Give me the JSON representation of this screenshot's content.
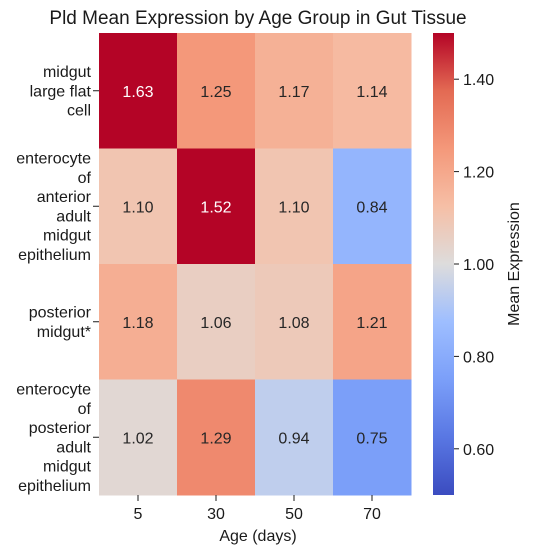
{
  "chart_data": {
    "type": "heatmap",
    "title": "Pld Mean Expression by Age Group in Gut Tissue",
    "xlabel": "Age (days)",
    "ylabel": "",
    "x_categories": [
      "5",
      "30",
      "50",
      "70"
    ],
    "y_categories": [
      "midgut large flat cell",
      "enterocyte of anterior adult midgut epithelium",
      "posterior midgut*",
      "enterocyte of posterior adult midgut epithelium"
    ],
    "values": [
      [
        1.63,
        1.25,
        1.17,
        1.14
      ],
      [
        1.1,
        1.52,
        1.1,
        0.84
      ],
      [
        1.18,
        1.06,
        1.08,
        1.21
      ],
      [
        1.02,
        1.29,
        0.94,
        0.75
      ]
    ],
    "value_labels": [
      [
        "1.63",
        "1.25",
        "1.17",
        "1.14"
      ],
      [
        "1.10",
        "1.52",
        "1.10",
        "0.84"
      ],
      [
        "1.18",
        "1.06",
        "1.08",
        "1.21"
      ],
      [
        "1.02",
        "1.29",
        "0.94",
        "0.75"
      ]
    ],
    "colormap": "coolwarm",
    "vmin": 0.5,
    "vmax": 1.5,
    "colorbar": {
      "label": "Mean Expression",
      "ticks": [
        0.6,
        0.8,
        1.0,
        1.2,
        1.4
      ],
      "tick_labels": [
        "0.60",
        "0.80",
        "1.00",
        "1.20",
        "1.40"
      ]
    },
    "grid": false
  }
}
